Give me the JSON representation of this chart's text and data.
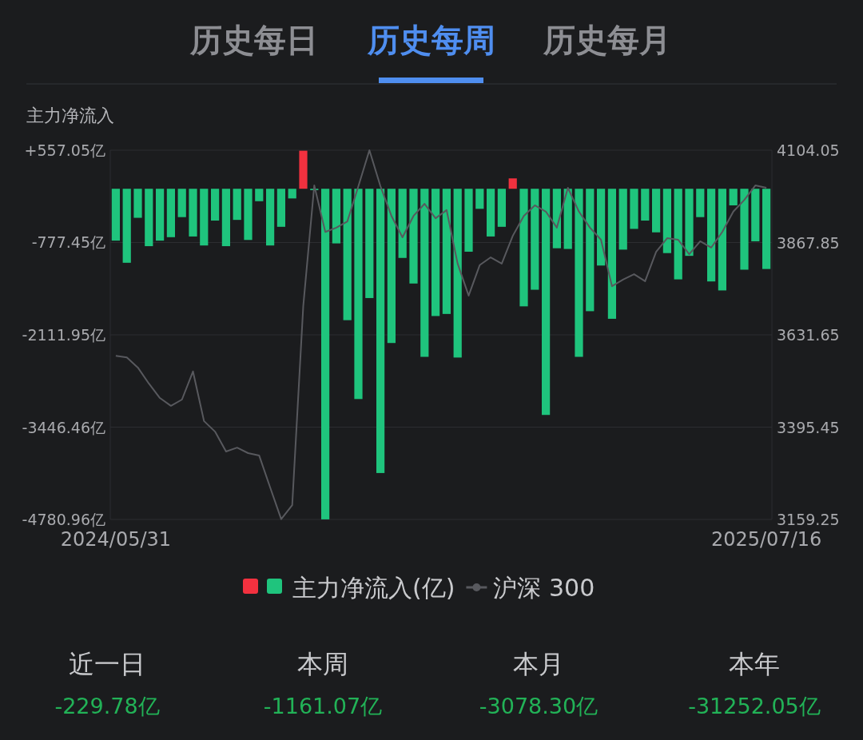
{
  "chart_data": {
    "type": "bar",
    "ylabel": "主力净流入",
    "annotations": [
      "历史每日",
      "历史每周",
      "历史每月",
      "近一日",
      "-229.78亿",
      "本周",
      "-1161.07亿",
      "本月",
      "-3078.30亿",
      "本年",
      "-31252.05亿"
    ],
    "categories": [
      "2024/05/31",
      null,
      null,
      null,
      null,
      null,
      null,
      null,
      null,
      null,
      null,
      null,
      null,
      null,
      null,
      null,
      null,
      null,
      null,
      null,
      null,
      null,
      null,
      null,
      null,
      null,
      null,
      null,
      null,
      null,
      null,
      null,
      null,
      null,
      null,
      null,
      null,
      null,
      null,
      null,
      null,
      null,
      null,
      null,
      null,
      null,
      null,
      null,
      null,
      null,
      null,
      null,
      null,
      null,
      null,
      null,
      null,
      null,
      null,
      "2025/07/16"
    ],
    "series": [
      {
        "name": "主力净流入(亿)",
        "type": "bar",
        "color": "#1fc47d",
        "values": [
          -750,
          -1070,
          -420,
          -830,
          -750,
          -700,
          -410,
          -690,
          -820,
          -460,
          -830,
          -450,
          -740,
          -180,
          -820,
          -550,
          -140,
          550,
          -20,
          -4780,
          -790,
          -1900,
          -3040,
          -1580,
          -4110,
          -2230,
          -1000,
          -1370,
          -2430,
          -1840,
          -1810,
          -2440,
          -910,
          -290,
          -690,
          -550,
          150,
          -1700,
          -1460,
          -3270,
          -860,
          -870,
          -2430,
          -1770,
          -1110,
          -1880,
          -880,
          -580,
          -460,
          -630,
          -930,
          -1310,
          -970,
          -410,
          -1340,
          -1470,
          -240,
          -1170,
          -760,
          -1160
        ],
        "colors": [
          "#1fc47d",
          "#1fc47d",
          "#1fc47d",
          "#1fc47d",
          "#1fc47d",
          "#1fc47d",
          "#1fc47d",
          "#1fc47d",
          "#1fc47d",
          "#1fc47d",
          "#1fc47d",
          "#1fc47d",
          "#1fc47d",
          "#1fc47d",
          "#1fc47d",
          "#1fc47d",
          "#1fc47d",
          "#f2313f",
          "#1fc47d",
          "#1fc47d",
          "#1fc47d",
          "#1fc47d",
          "#1fc47d",
          "#1fc47d",
          "#1fc47d",
          "#1fc47d",
          "#1fc47d",
          "#1fc47d",
          "#1fc47d",
          "#1fc47d",
          "#1fc47d",
          "#1fc47d",
          "#1fc47d",
          "#1fc47d",
          "#1fc47d",
          "#1fc47d",
          "#f2313f",
          "#1fc47d",
          "#1fc47d",
          "#1fc47d",
          "#1fc47d",
          "#1fc47d",
          "#1fc47d",
          "#1fc47d",
          "#1fc47d",
          "#1fc47d",
          "#1fc47d",
          "#1fc47d",
          "#1fc47d",
          "#1fc47d",
          "#1fc47d",
          "#1fc47d",
          "#1fc47d",
          "#1fc47d",
          "#1fc47d",
          "#1fc47d",
          "#1fc47d",
          "#1fc47d",
          "#1fc47d",
          "#1fc47d"
        ]
      },
      {
        "name": "沪深 300",
        "type": "line",
        "axis": "y2",
        "color": "#58595e",
        "values": [
          3578,
          3574,
          3548,
          3507,
          3470,
          3450,
          3466,
          3538,
          3411,
          3384,
          3333,
          3343,
          3329,
          3323,
          3241,
          3160,
          3196,
          3705,
          4014,
          3895,
          3906,
          3922,
          4012,
          4104,
          4012,
          3936,
          3881,
          3936,
          3967,
          3930,
          3951,
          3814,
          3732,
          3810,
          3830,
          3814,
          3885,
          3936,
          3963,
          3947,
          3906,
          4008,
          3947,
          3906,
          3875,
          3756,
          3773,
          3787,
          3769,
          3844,
          3879,
          3875,
          3838,
          3871,
          3855,
          3895,
          3947,
          3977,
          4014,
          4008
        ]
      }
    ],
    "ylim": [
      -4780.96,
      557.05
    ],
    "yticks": [
      {
        "value": 557.05,
        "label": "+557.05亿"
      },
      {
        "value": -777.45,
        "label": "-777.45亿"
      },
      {
        "value": -2111.95,
        "label": "-2111.95亿"
      },
      {
        "value": -3446.46,
        "label": "-3446.46亿"
      },
      {
        "value": -4780.96,
        "label": "-4780.96亿"
      }
    ],
    "y2lim": [
      3159.25,
      4104.05
    ],
    "y2ticks": [
      4104.05,
      3867.85,
      3631.65,
      3395.45,
      3159.25
    ],
    "grid": "y",
    "legend": "bottom"
  }
}
